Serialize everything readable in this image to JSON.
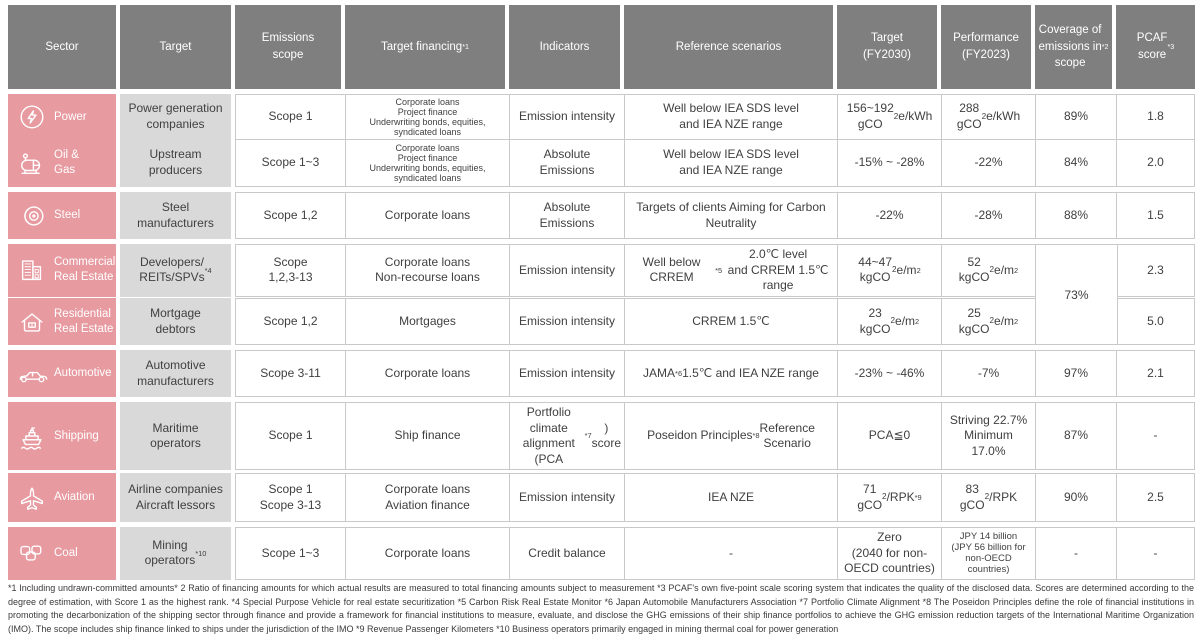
{
  "colors": {
    "sector_pink": "#E79AA0",
    "header_gray": "#7F7F7F",
    "target_gray": "#D9D9D9",
    "border_gray": "#C9C9C9"
  },
  "table": {
    "headers": {
      "sector": "Sector",
      "target": "Target",
      "scope": "Emissions<br>scope",
      "financing": "Target financing<sup>*1</sup>",
      "indicators": "Indicators",
      "reference": "Reference scenarios",
      "target_fy2030": "Target<br>(FY2030)",
      "performance_fy2023": "Performance<br>(FY2023)",
      "coverage": "Coverage of<br>emissions in<br>scope<sup>*2</sup>",
      "pcaf": "PCAF<br>score<sup>*3</sup>"
    },
    "rows": [
      {
        "sector": "Power",
        "icon": "power-icon",
        "target": "Power generation<br>companies",
        "scope": "Scope 1",
        "financing": "Corporate loans<br>Project finance<br>Underwriting bonds, equities,<br>syndicated loans",
        "indicators": "Emission intensity",
        "reference": "Well below IEA SDS level<br>and IEA NZE range",
        "target_fy2030": "156~192<br>gCO<sub>2</sub>e/kWh",
        "performance_fy2023": "288<br>gCO<sub>2</sub>e/kWh",
        "coverage": "89%",
        "pcaf": "1.8"
      },
      {
        "sector": "Oil &amp;<br>Gas",
        "icon": "oil-tank-icon",
        "target": "Upstream<br>producers",
        "scope": "Scope 1~3",
        "financing": "Corporate loans<br>Project finance<br>Underwriting bonds, equities,<br>syndicated loans",
        "indicators": "Absolute<br>Emissions",
        "reference": "Well below IEA SDS level<br>and IEA NZE range",
        "target_fy2030": "-15% ~ -28%",
        "performance_fy2023": "-22%",
        "coverage": "84%",
        "pcaf": "2.0"
      },
      {
        "sector": "Steel",
        "icon": "steel-coil-icon",
        "target": "Steel<br>manufacturers",
        "scope": "Scope 1,2",
        "financing": "Corporate loans",
        "indicators": "Absolute<br>Emissions",
        "reference": "Targets of clients Aiming for Carbon<br>Neutrality",
        "target_fy2030": "-22%",
        "performance_fy2023": "-28%",
        "coverage": "88%",
        "pcaf": "1.5"
      },
      {
        "sector": "Commercial<br>Real Estate",
        "icon": "buildings-icon",
        "target": "Developers/<br>REITs/SPVs<sup>*4</sup>",
        "scope": "Scope<br>1,2,3-13",
        "financing": "Corporate loans<br>Non-recourse loans",
        "indicators": "Emission intensity",
        "reference": "Well below CRREM<sup>*5</sup> 2.0℃ level<br>and CRREM 1.5℃ range",
        "target_fy2030": "44~47<br>kgCO<sub>2</sub>e/m<sup>2</sup>",
        "performance_fy2023": "52<br>kgCO<sub>2</sub>e/m<sup>2</sup>",
        "coverage": "",
        "pcaf": "2.3"
      },
      {
        "sector": "Residential<br>Real Estate",
        "icon": "house-icon",
        "target": "Mortgage<br>debtors",
        "scope": "Scope 1,2",
        "financing": "Mortgages",
        "indicators": "Emission intensity",
        "reference": "CRREM 1.5℃",
        "target_fy2030": "23<br>kgCO<sub>2</sub>e/m<sup>2</sup>",
        "performance_fy2023": "25<br>kgCO<sub>2</sub>e/m<sup>2</sup>",
        "coverage": "",
        "pcaf": "5.0"
      },
      {
        "sector": "Automotive",
        "icon": "car-icon",
        "target": "Automotive<br>manufacturers",
        "scope": "Scope 3-11",
        "financing": "Corporate loans",
        "indicators": "Emission intensity",
        "reference": "JAMA<sup>*6</sup> 1.5℃ and IEA NZE range",
        "target_fy2030": "-23% ~ -46%",
        "performance_fy2023": "-7%",
        "coverage": "97%",
        "pcaf": "2.1"
      },
      {
        "sector": "Shipping",
        "icon": "ship-icon",
        "target": "Maritime<br>operators",
        "scope": "Scope 1",
        "financing": "Ship finance",
        "indicators": "Portfolio<br>climate alignment<br>(PCA<sup>*7</sup>) score",
        "reference": "Poseidon Principles<sup>*8</sup> Reference<br>Scenario",
        "target_fy2030": "PCA≦0",
        "performance_fy2023": "Striving 22.7%<br>Minimum<br>17.0%",
        "coverage": "87%",
        "pcaf": "-"
      },
      {
        "sector": "Aviation",
        "icon": "airplane-icon",
        "target": "Airline companies<br>Aircraft lessors",
        "scope": "Scope 1<br>Scope 3-13",
        "financing": "Corporate loans<br>Aviation finance",
        "indicators": "Emission intensity",
        "reference": "IEA NZE",
        "target_fy2030": "71<br>gCO<sub>2</sub>/RPK<sup>*9</sup>",
        "performance_fy2023": "83<br>gCO<sub>2</sub>/RPK",
        "coverage": "90%",
        "pcaf": "2.5"
      },
      {
        "sector": "Coal",
        "icon": "coal-icon",
        "target": "Mining<br>operators<sup>*10</sup>",
        "scope": "Scope 1~3",
        "financing": "Corporate loans",
        "indicators": "Credit balance",
        "reference": "-",
        "target_fy2030": "Zero<br>(2040 for non-<br>OECD countries)",
        "performance_fy2023": "JPY 14 billion<br>(JPY 56 billion for<br>non-OECD<br>countries)",
        "coverage": "-",
        "pcaf": "-"
      }
    ],
    "merged_coverage_value": "73%"
  },
  "footnotes": "*1 Including undrawn-committed amounts* 2 Ratio of financing amounts for which actual results are measured to total financing amounts subject to measurement *3 PCAF's own five-point scale scoring system that indicates the quality of the disclosed data. Scores are determined according to the degree of estimation, with Score 1 as the highest rank. *4 Special Purpose Vehicle for real estate securitization *5 Carbon Risk Real Estate Monitor *6 Japan Automobile Manufacturers Association *7 Portfolio Climate Alignment *8 The Poseidon Principles define the role of financial institutions in promoting the decarbonization of the shipping sector through finance and provide a framework for financial institutions to measure, evaluate, and disclose the GHG emissions of their ship finance portfolios to achieve the GHG emission reduction targets of the International Maritime Organization (IMO). The scope includes ship finance linked to ships under the jurisdiction of the IMO *9 Revenue Passenger Kilometers *10 Business operators primarily engaged in mining thermal coal for power generation"
}
